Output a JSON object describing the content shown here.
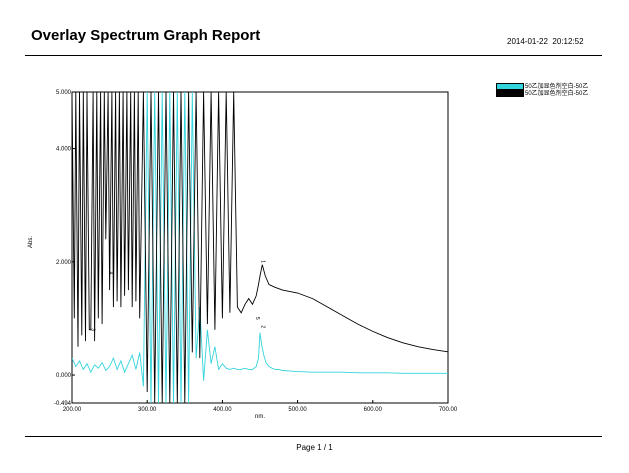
{
  "report": {
    "title": "Overlay Spectrum Graph Report",
    "date": "2014-01-22",
    "time": "20:12:52",
    "footer": "Page 1 / 1"
  },
  "chart_data": {
    "type": "line",
    "xlabel": "nm.",
    "ylabel": "Abs.",
    "xlim": [
      200,
      700
    ],
    "ylim": [
      -0.494,
      5.0
    ],
    "x_ticks": [
      "200.00",
      "300.00",
      "400.00",
      "500.00",
      "600.00",
      "700.00"
    ],
    "y_ticks": [
      "-0.494",
      "0.000",
      "2.000",
      "4.000",
      "5.000"
    ],
    "grid": false,
    "legend_position": "top-right-outside",
    "series": [
      {
        "name": "50乙加显色剂空白-50乙",
        "color": "#33d4dc",
        "x": [
          200,
          205,
          210,
          215,
          220,
          225,
          230,
          235,
          240,
          245,
          250,
          255,
          260,
          265,
          270,
          275,
          280,
          285,
          290,
          295,
          300,
          305,
          310,
          315,
          320,
          325,
          330,
          335,
          340,
          345,
          350,
          355,
          360,
          365,
          370,
          375,
          380,
          385,
          390,
          395,
          400,
          405,
          410,
          415,
          420,
          425,
          430,
          435,
          440,
          445,
          448,
          450,
          452,
          455,
          458,
          462,
          466,
          470,
          475,
          480,
          490,
          500,
          520,
          540,
          560,
          580,
          600,
          620,
          640,
          660,
          680,
          700
        ],
        "y": [
          0.3,
          0.15,
          0.25,
          0.1,
          0.2,
          0.05,
          0.18,
          0.12,
          0.22,
          0.08,
          0.15,
          0.3,
          0.1,
          0.25,
          0.05,
          0.2,
          0.35,
          0.1,
          0.4,
          -0.2,
          5.0,
          -0.494,
          5.0,
          -0.494,
          5.0,
          -0.494,
          5.0,
          -0.494,
          5.0,
          -0.494,
          5.0,
          -0.494,
          5.0,
          0.3,
          1.2,
          -0.1,
          0.8,
          0.2,
          0.5,
          0.1,
          0.2,
          0.12,
          0.1,
          0.12,
          0.1,
          0.1,
          0.12,
          0.1,
          0.1,
          0.15,
          0.3,
          0.75,
          0.55,
          0.35,
          0.22,
          0.15,
          0.12,
          0.1,
          0.1,
          0.08,
          0.07,
          0.06,
          0.05,
          0.05,
          0.05,
          0.04,
          0.04,
          0.04,
          0.03,
          0.03,
          0.03,
          0.03
        ]
      },
      {
        "name": "50乙加显色剂空白-50乙",
        "color": "#000000",
        "x": [
          200,
          203,
          205,
          208,
          210,
          213,
          215,
          218,
          220,
          223,
          225,
          228,
          230,
          233,
          235,
          238,
          240,
          243,
          245,
          248,
          250,
          253,
          255,
          258,
          260,
          263,
          265,
          268,
          270,
          273,
          275,
          278,
          280,
          283,
          285,
          288,
          290,
          295,
          300,
          305,
          310,
          315,
          320,
          325,
          330,
          335,
          340,
          345,
          350,
          355,
          360,
          365,
          370,
          375,
          380,
          385,
          390,
          395,
          400,
          405,
          410,
          415,
          420,
          425,
          430,
          435,
          440,
          445,
          448,
          450,
          453,
          457,
          462,
          470,
          480,
          500,
          520,
          540,
          560,
          580,
          600,
          620,
          640,
          660,
          680,
          700
        ],
        "y": [
          5.0,
          1.0,
          5.0,
          0.5,
          5.0,
          0.7,
          5.0,
          0.6,
          5.0,
          0.8,
          0.8,
          5.0,
          0.6,
          5.0,
          1.0,
          5.0,
          0.9,
          5.0,
          2.4,
          5.0,
          1.5,
          5.0,
          1.2,
          5.0,
          1.3,
          5.0,
          1.2,
          5.0,
          1.4,
          5.0,
          1.5,
          5.0,
          1.2,
          5.0,
          1.3,
          5.0,
          1.0,
          5.0,
          -0.3,
          5.0,
          -0.494,
          5.0,
          -0.494,
          5.0,
          -0.494,
          5.0,
          -0.494,
          5.0,
          -0.494,
          5.0,
          0.4,
          5.0,
          0.3,
          5.0,
          0.9,
          5.0,
          0.8,
          5.0,
          1.0,
          5.0,
          1.1,
          5.0,
          1.2,
          1.1,
          1.25,
          1.35,
          1.25,
          1.4,
          1.6,
          1.75,
          1.95,
          1.75,
          1.6,
          1.55,
          1.5,
          1.45,
          1.35,
          1.2,
          1.05,
          0.9,
          0.77,
          0.66,
          0.57,
          0.5,
          0.45,
          0.41
        ]
      }
    ],
    "annotations": [
      {
        "text": "1",
        "x": 452,
        "y": 1.95
      },
      {
        "text": "2",
        "x": 452,
        "y": 0.8
      },
      {
        "text": "3",
        "x": 226,
        "y": 0.75
      },
      {
        "text": "4",
        "x": 250,
        "y": 1.75
      },
      {
        "text": "5",
        "x": 445,
        "y": 0.95
      }
    ]
  }
}
